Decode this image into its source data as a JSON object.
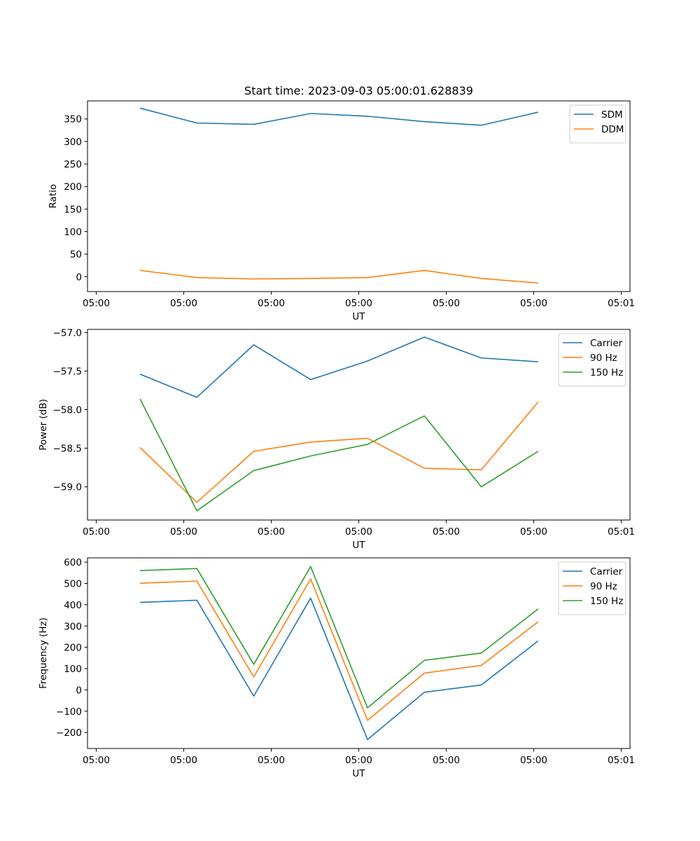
{
  "figure_title": "Start time: 2023-09-03 05:00:01.628839",
  "chart_data": [
    {
      "type": "line",
      "title": "Start time: 2023-09-03 05:00:01.628839",
      "xlabel": "UT",
      "ylabel": "Ratio",
      "xlim": [
        0,
        6.2
      ],
      "x_ticks": [
        0.1,
        1.1,
        2.1,
        3.1,
        4.1,
        5.1,
        6.1
      ],
      "x_tick_labels": [
        "05:00",
        "05:00",
        "05:00",
        "05:00",
        "05:00",
        "05:00",
        "05:01"
      ],
      "ylim": [
        -33,
        390
      ],
      "y_ticks": [
        0,
        50,
        100,
        150,
        200,
        250,
        300,
        350
      ],
      "y_tick_labels": [
        "0",
        "50",
        "100",
        "150",
        "200",
        "250",
        "300",
        "350"
      ],
      "grid": false,
      "legend_position": "top-right",
      "x": [
        0.6,
        1.25,
        1.9,
        2.55,
        3.2,
        3.85,
        4.5,
        5.15
      ],
      "series": [
        {
          "name": "SDM",
          "color": "#1f77b4",
          "values": [
            374,
            341,
            338,
            362,
            356,
            344,
            336,
            365
          ]
        },
        {
          "name": "DDM",
          "color": "#ff7f0e",
          "values": [
            14,
            -2,
            -5,
            -4,
            -2,
            14,
            -4,
            -14
          ]
        }
      ]
    },
    {
      "type": "line",
      "title": "",
      "xlabel": "UT",
      "ylabel": "Power (dB)",
      "xlim": [
        0,
        6.2
      ],
      "x_ticks": [
        0.1,
        1.1,
        2.1,
        3.1,
        4.1,
        5.1,
        6.1
      ],
      "x_tick_labels": [
        "05:00",
        "05:00",
        "05:00",
        "05:00",
        "05:00",
        "05:00",
        "05:01"
      ],
      "ylim": [
        -59.43,
        -56.96
      ],
      "y_ticks": [
        -59.0,
        -58.5,
        -58.0,
        -57.5,
        -57.0
      ],
      "y_tick_labels": [
        "−59.0",
        "−58.5",
        "−58.0",
        "−57.5",
        "−57.0"
      ],
      "grid": false,
      "legend_position": "top-right",
      "x": [
        0.6,
        1.25,
        1.9,
        2.55,
        3.2,
        3.85,
        4.5,
        5.15
      ],
      "series": [
        {
          "name": "Carrier",
          "color": "#1f77b4",
          "values": [
            -57.54,
            -57.84,
            -57.16,
            -57.61,
            -57.37,
            -57.06,
            -57.33,
            -57.38
          ]
        },
        {
          "name": "90 Hz",
          "color": "#ff7f0e",
          "values": [
            -58.49,
            -59.2,
            -58.54,
            -58.42,
            -58.37,
            -58.76,
            -58.78,
            -57.9
          ]
        },
        {
          "name": "150 Hz",
          "color": "#2ca02c",
          "values": [
            -57.86,
            -59.31,
            -58.79,
            -58.6,
            -58.45,
            -58.08,
            -59.0,
            -58.54
          ]
        }
      ]
    },
    {
      "type": "line",
      "title": "",
      "xlabel": "UT",
      "ylabel": "Frequency (Hz)",
      "xlim": [
        0,
        6.2
      ],
      "x_ticks": [
        0.1,
        1.1,
        2.1,
        3.1,
        4.1,
        5.1,
        6.1
      ],
      "x_tick_labels": [
        "05:00",
        "05:00",
        "05:00",
        "05:00",
        "05:00",
        "05:00",
        "05:01"
      ],
      "ylim": [
        -275,
        620
      ],
      "y_ticks": [
        -200,
        -100,
        0,
        100,
        200,
        300,
        400,
        500,
        600
      ],
      "y_tick_labels": [
        "−200",
        "−100",
        "0",
        "100",
        "200",
        "300",
        "400",
        "500",
        "600"
      ],
      "grid": false,
      "legend_position": "top-right",
      "x": [
        0.6,
        1.25,
        1.9,
        2.55,
        3.2,
        3.85,
        4.5,
        5.15
      ],
      "series": [
        {
          "name": "Carrier",
          "color": "#1f77b4",
          "values": [
            411,
            421,
            -29,
            431,
            -233,
            -11,
            23,
            230
          ]
        },
        {
          "name": "90 Hz",
          "color": "#ff7f0e",
          "values": [
            501,
            511,
            61,
            521,
            -143,
            79,
            115,
            320
          ]
        },
        {
          "name": "150 Hz",
          "color": "#2ca02c",
          "values": [
            560,
            570,
            120,
            579,
            -84,
            139,
            173,
            380
          ]
        }
      ]
    }
  ]
}
